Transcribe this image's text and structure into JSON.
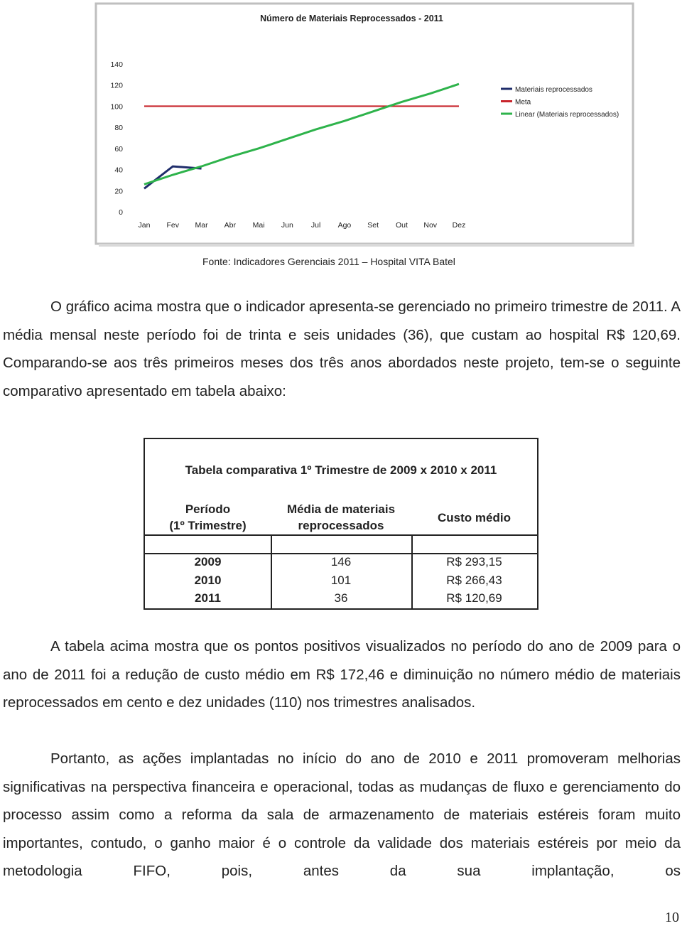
{
  "chart_data": {
    "type": "line",
    "title": "Número de Materiais Reprocessados - 2011",
    "categories": [
      "Jan",
      "Fev",
      "Mar",
      "Abr",
      "Mai",
      "Jun",
      "Jul",
      "Ago",
      "Set",
      "Out",
      "Nov",
      "Dez"
    ],
    "series": [
      {
        "name": "Materiais reprocessados",
        "color": "#1f2d6b",
        "values": [
          22,
          43,
          41,
          null,
          null,
          null,
          null,
          null,
          null,
          null,
          null,
          null
        ]
      },
      {
        "name": "Meta",
        "color": "#c8252c",
        "values": [
          100,
          100,
          100,
          100,
          100,
          100,
          100,
          100,
          100,
          100,
          100,
          100
        ]
      },
      {
        "name": "Linear (Materiais reprocessados)",
        "color": "#2eb34b",
        "values": [
          26,
          35,
          43,
          52,
          60,
          69,
          78,
          86,
          95,
          104,
          112,
          121
        ]
      }
    ],
    "ylim": [
      0,
      140
    ],
    "yticks": [
      0,
      20,
      40,
      60,
      80,
      100,
      120,
      140
    ],
    "grid": false,
    "legend": "right"
  },
  "caption": "Fonte: Indicadores Gerenciais 2011 – Hospital VITA Batel",
  "paragraphs": [
    "O gráfico acima mostra que o indicador apresenta-se gerenciado no primeiro trimestre de 2011.  A média mensal neste período foi de trinta e seis unidades (36), que custam ao hospital R$ 120,69. Comparando-se aos três primeiros meses dos três anos abordados neste projeto, tem-se o seguinte comparativo apresentado em tabela abaixo:",
    "A tabela acima mostra que os pontos positivos visualizados no período do ano de 2009 para o ano de 2011 foi a redução de custo médio em R$ 172,46 e diminuição no número médio de materiais reprocessados em cento e dez unidades (110) nos trimestres analisados.",
    "Portanto, as ações implantadas no início do ano de 2010 e 2011 promoveram melhorias significativas na perspectiva financeira e operacional, todas as mudanças de fluxo e gerenciamento do processo assim como a reforma da sala de armazenamento de materiais estéreis foram muito importantes, contudo, o ganho maior é o controle da validade dos materiais estéreis por meio da metodologia FIFO, pois, antes da sua implantação, os"
  ],
  "table": {
    "title": "Tabela comparativa 1º Trimestre de 2009 x 2010 x 2011",
    "headers": [
      [
        "Período",
        "(1º Trimestre)"
      ],
      [
        "Média de materiais",
        "reprocessados"
      ],
      [
        "Custo médio"
      ]
    ],
    "rows": [
      [
        "2009",
        "146",
        "R$ 293,15"
      ],
      [
        "2010",
        "101",
        "R$ 266,43"
      ],
      [
        "2011",
        "36",
        "R$ 120,69"
      ]
    ]
  },
  "page_number": "10"
}
